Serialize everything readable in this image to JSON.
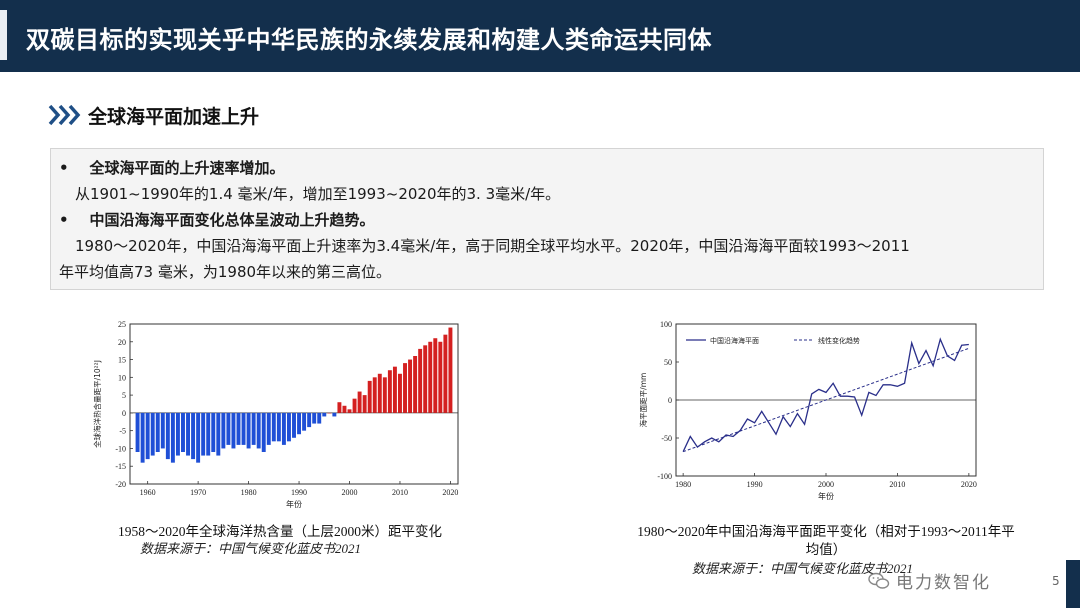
{
  "header": {
    "title": "双碳目标的实现关乎中华民族的永续发展和构建人类命运共同体"
  },
  "section": {
    "title": "全球海平面加速上升"
  },
  "bullets": [
    {
      "heading": "全球海平面的上升速率增加。",
      "text": "从1901~1990年的1.4 毫米/年，增加至1993~2020年的3. 3毫米/年。"
    },
    {
      "heading": "中国沿海海平面变化总体呈波动上升趋势。",
      "text_line1": "1980～2020年，中国沿海海平面上升速率为3.4毫米/年，高于同期全球平均水平。2020年，中国沿海海平面较1993～2011",
      "text_line2": "年平均值高73 毫米，为1980年以来的第三高位。"
    }
  ],
  "chart_data": [
    {
      "type": "bar",
      "ylabel": "全球海洋热含量距平/10²²J",
      "xlabel": "年份",
      "ylim": [
        -20,
        25
      ],
      "yticks": [
        -20,
        -15,
        -10,
        -5,
        0,
        5,
        10,
        15,
        20,
        25
      ],
      "xticks": [
        1960,
        1970,
        1980,
        1990,
        2000,
        2010,
        2020
      ],
      "grid": false,
      "colors": {
        "negative": "#1f4fd6",
        "positive": "#d42020"
      },
      "x": [
        1958,
        1959,
        1960,
        1961,
        1962,
        1963,
        1964,
        1965,
        1966,
        1967,
        1968,
        1969,
        1970,
        1971,
        1972,
        1973,
        1974,
        1975,
        1976,
        1977,
        1978,
        1979,
        1980,
        1981,
        1982,
        1983,
        1984,
        1985,
        1986,
        1987,
        1988,
        1989,
        1990,
        1991,
        1992,
        1993,
        1994,
        1995,
        1996,
        1997,
        1998,
        1999,
        2000,
        2001,
        2002,
        2003,
        2004,
        2005,
        2006,
        2007,
        2008,
        2009,
        2010,
        2011,
        2012,
        2013,
        2014,
        2015,
        2016,
        2017,
        2018,
        2019,
        2020
      ],
      "values": [
        -11,
        -14,
        -13,
        -12,
        -11,
        -10,
        -13,
        -14,
        -12,
        -11,
        -12,
        -13,
        -14,
        -12,
        -12,
        -11,
        -12,
        -10,
        -9,
        -10,
        -9,
        -9,
        -10,
        -9,
        -10,
        -11,
        -9,
        -8,
        -8,
        -9,
        -8,
        -7,
        -6,
        -5,
        -4,
        -3,
        -3,
        -1,
        0,
        -1,
        3,
        2,
        1,
        4,
        6,
        5,
        9,
        10,
        11,
        10,
        12,
        13,
        11,
        14,
        15,
        16,
        18,
        19,
        20,
        21,
        20,
        22,
        24
      ]
    },
    {
      "type": "line",
      "ylabel": "海平面距平/mm",
      "xlabel": "年份",
      "ylim": [
        -100,
        100
      ],
      "yticks": [
        -100,
        -50,
        0,
        50,
        100
      ],
      "xticks": [
        1980,
        1990,
        2000,
        2010,
        2020
      ],
      "grid": false,
      "legend": "top-left",
      "series": [
        {
          "name": "中国沿海海平面",
          "style": "solid",
          "color": "#2a2f8a",
          "x": [
            1980,
            1981,
            1982,
            1983,
            1984,
            1985,
            1986,
            1987,
            1988,
            1989,
            1990,
            1991,
            1992,
            1993,
            1994,
            1995,
            1996,
            1997,
            1998,
            1999,
            2000,
            2001,
            2002,
            2003,
            2004,
            2005,
            2006,
            2007,
            2008,
            2009,
            2010,
            2011,
            2012,
            2013,
            2014,
            2015,
            2016,
            2017,
            2018,
            2019,
            2020
          ],
          "values": [
            -68,
            -48,
            -62,
            -55,
            -50,
            -55,
            -46,
            -48,
            -40,
            -25,
            -30,
            -15,
            -30,
            -45,
            -22,
            -35,
            -18,
            -32,
            8,
            14,
            10,
            22,
            5,
            5,
            4,
            -20,
            10,
            6,
            20,
            20,
            18,
            22,
            75,
            48,
            65,
            45,
            80,
            58,
            52,
            72,
            73
          ]
        },
        {
          "name": "线性变化趋势",
          "style": "dashed",
          "color": "#2a2f8a",
          "x": [
            1980,
            2020
          ],
          "values": [
            -68,
            68
          ]
        }
      ]
    }
  ],
  "captions": {
    "left": "1958～2020年全球海洋热含量（上层2000米）距平变化",
    "left_source": "数据来源于：中国气候变化蓝皮书2021",
    "right_line1": "1980～2020年中国沿海海平面距平变化（相对于1993～2011年平",
    "right_line2": "均值）",
    "right_source": "数据来源于：中国气候变化蓝皮书2021"
  },
  "watermark": {
    "text": "电力数智化",
    "icon": "wechat-icon"
  },
  "page_number": "5"
}
